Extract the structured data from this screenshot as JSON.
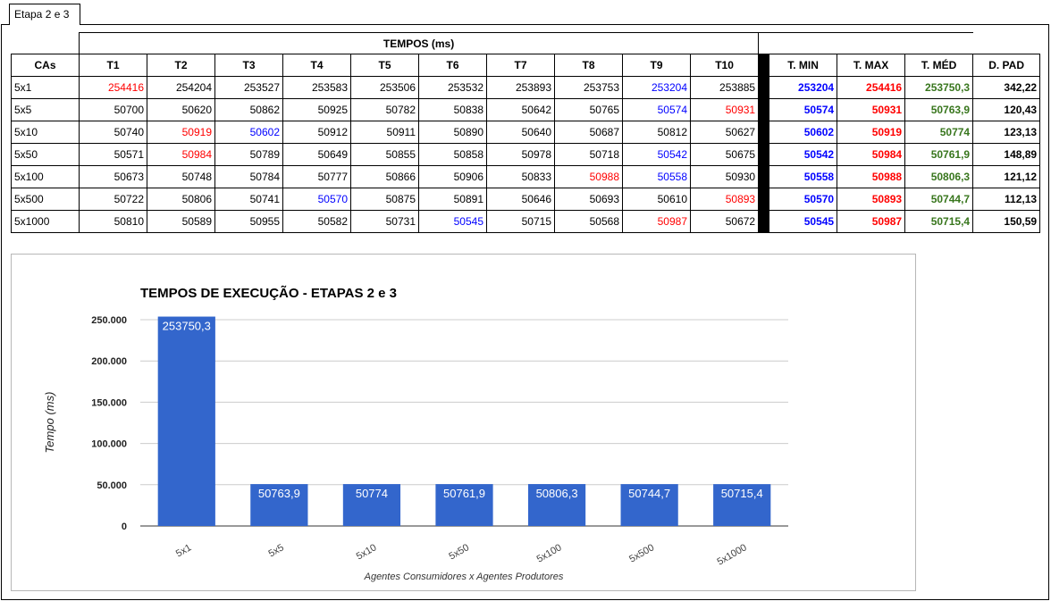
{
  "sheet_tab": "Etapa 2 e 3",
  "table": {
    "group_header": "TEMPOS (ms)",
    "columns": [
      "CAs",
      "T1",
      "T2",
      "T3",
      "T4",
      "T5",
      "T6",
      "T7",
      "T8",
      "T9",
      "T10",
      "",
      "T. MIN",
      "T. MAX",
      "T. MÉD",
      "D. PAD"
    ],
    "rows": [
      {
        "label": "5x1",
        "t": [
          "254416",
          "254204",
          "253527",
          "253583",
          "253506",
          "253532",
          "253893",
          "253753",
          "253204",
          "253885"
        ],
        "min": "253204",
        "max": "254416",
        "med": "253750,3",
        "dpad": "342,22",
        "min_idx": 8,
        "max_idx": 0
      },
      {
        "label": "5x5",
        "t": [
          "50700",
          "50620",
          "50862",
          "50925",
          "50782",
          "50838",
          "50642",
          "50765",
          "50574",
          "50931"
        ],
        "min": "50574",
        "max": "50931",
        "med": "50763,9",
        "dpad": "120,43",
        "min_idx": 8,
        "max_idx": 9
      },
      {
        "label": "5x10",
        "t": [
          "50740",
          "50919",
          "50602",
          "50912",
          "50911",
          "50890",
          "50640",
          "50687",
          "50812",
          "50627"
        ],
        "min": "50602",
        "max": "50919",
        "med": "50774",
        "dpad": "123,13",
        "min_idx": 2,
        "max_idx": 1
      },
      {
        "label": "5x50",
        "t": [
          "50571",
          "50984",
          "50789",
          "50649",
          "50855",
          "50858",
          "50978",
          "50718",
          "50542",
          "50675"
        ],
        "min": "50542",
        "max": "50984",
        "med": "50761,9",
        "dpad": "148,89",
        "min_idx": 8,
        "max_idx": 1
      },
      {
        "label": "5x100",
        "t": [
          "50673",
          "50748",
          "50784",
          "50777",
          "50866",
          "50906",
          "50833",
          "50988",
          "50558",
          "50930"
        ],
        "min": "50558",
        "max": "50988",
        "med": "50806,3",
        "dpad": "121,12",
        "min_idx": 8,
        "max_idx": 7
      },
      {
        "label": "5x500",
        "t": [
          "50722",
          "50806",
          "50741",
          "50570",
          "50875",
          "50891",
          "50646",
          "50693",
          "50610",
          "50893"
        ],
        "min": "50570",
        "max": "50893",
        "med": "50744,7",
        "dpad": "112,13",
        "min_idx": 3,
        "max_idx": 9
      },
      {
        "label": "5x1000",
        "t": [
          "50810",
          "50589",
          "50955",
          "50582",
          "50731",
          "50545",
          "50715",
          "50568",
          "50987",
          "50672"
        ],
        "min": "50545",
        "max": "50987",
        "med": "50715,4",
        "dpad": "150,59",
        "min_idx": 5,
        "max_idx": 8
      }
    ]
  },
  "colors": {
    "min": "#0000ff",
    "max": "#ff0000",
    "med": "#38761d",
    "bar": "#3366cc"
  },
  "chart_data": {
    "type": "bar",
    "title": "TEMPOS DE EXECUÇÃO - ETAPAS 2 e 3",
    "xlabel": "Agentes Consumidores x Agentes Produtores",
    "ylabel": "Tempo (ms)",
    "categories": [
      "5x1",
      "5x5",
      "5x10",
      "5x50",
      "5x100",
      "5x500",
      "5x1000"
    ],
    "values": [
      253750.3,
      50763.9,
      50774,
      50761.9,
      50806.3,
      50744.7,
      50715.4
    ],
    "data_labels": [
      "253750,3",
      "50763,9",
      "50774",
      "50761,9",
      "50806,3",
      "50744,7",
      "50715,4"
    ],
    "ylim": [
      0,
      250000
    ],
    "yticks": [
      0,
      50000,
      100000,
      150000,
      200000,
      250000
    ],
    "ytick_labels": [
      "0",
      "50.000",
      "100.000",
      "150.000",
      "200.000",
      "250.000"
    ],
    "grid": true,
    "legend": "none"
  }
}
